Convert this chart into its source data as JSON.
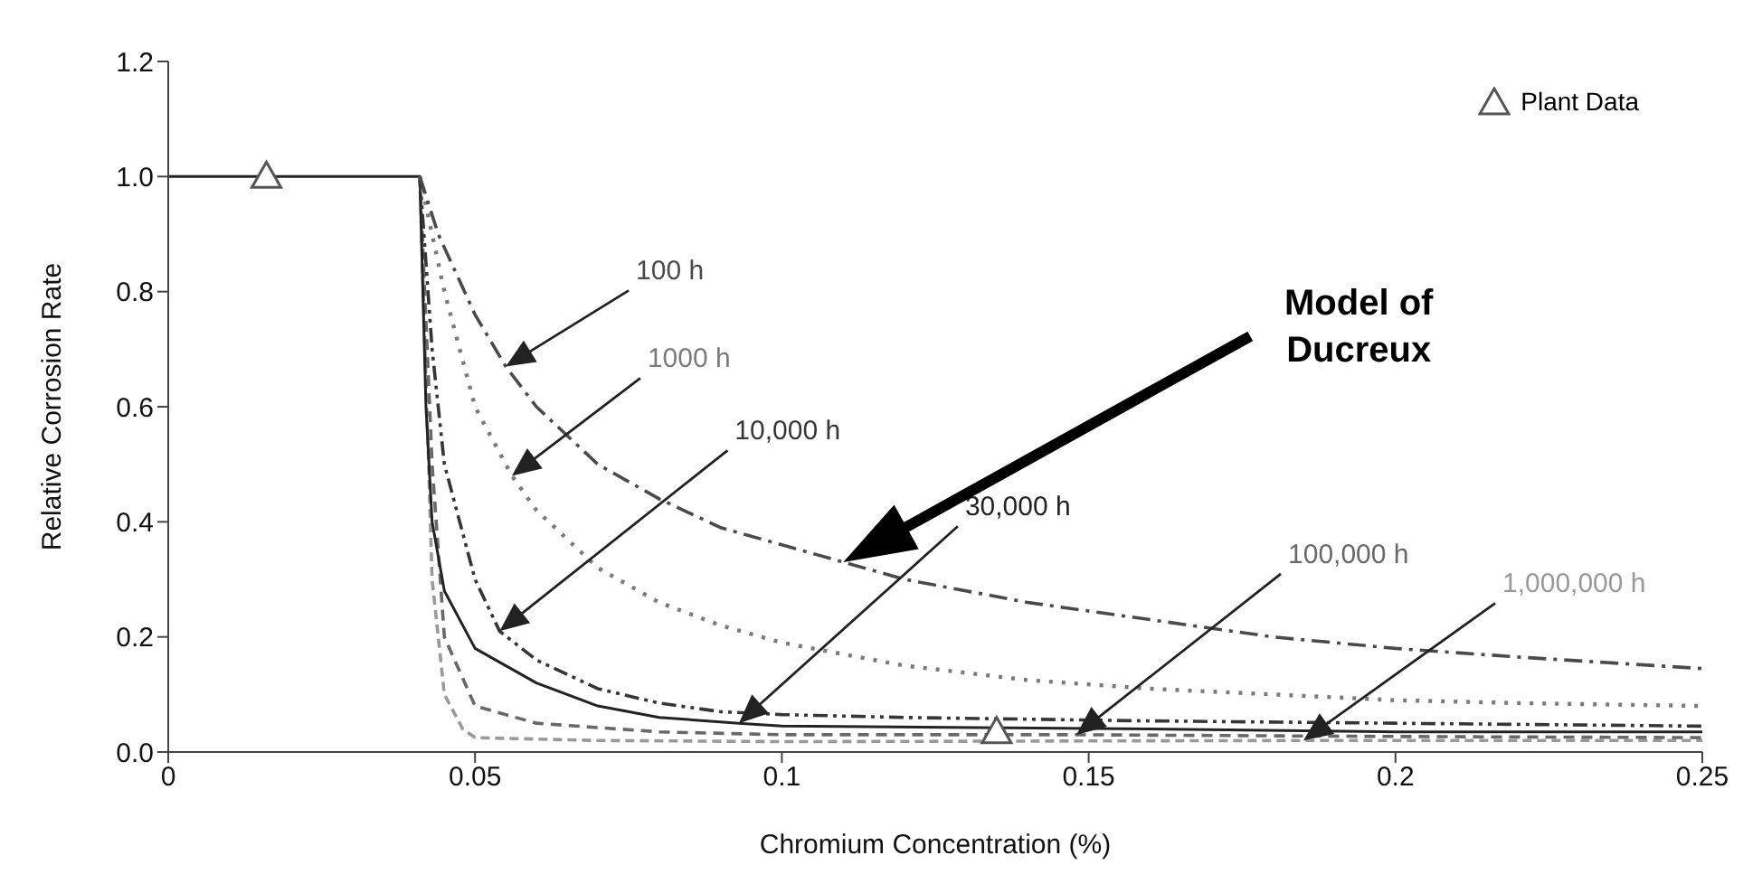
{
  "chart_data": {
    "type": "line",
    "xlabel": "Chromium Concentration (%)",
    "ylabel": "Relative Corrosion Rate",
    "xlim": [
      0,
      0.25
    ],
    "xticks": [
      0,
      0.05,
      0.1,
      0.15,
      0.2,
      0.25
    ],
    "ylim": [
      0,
      1.2
    ],
    "yticks": [
      {
        "value": 0,
        "label": "0.0"
      },
      {
        "value": 0.2,
        "label": "0.2"
      },
      {
        "value": 0.4,
        "label": "0.4"
      },
      {
        "value": 0.6,
        "label": "0.6"
      },
      {
        "value": 0.8,
        "label": "0.8"
      },
      {
        "value": 1,
        "label": "1.0"
      },
      {
        "value": 1.2,
        "label": "1.2"
      }
    ],
    "grid": false,
    "legend": "top right",
    "series": [
      {
        "name": "100 h",
        "color": "#4a4a4a",
        "line_style": "dashed",
        "x": [
          0.041,
          0.044,
          0.05,
          0.055,
          0.06,
          0.07,
          0.08,
          0.09,
          0.1,
          0.11,
          0.12,
          0.14,
          0.16,
          0.18,
          0.2,
          0.22,
          0.25
        ],
        "values": [
          1,
          0.9,
          0.76,
          0.67,
          0.6,
          0.5,
          0.44,
          0.39,
          0.36,
          0.33,
          0.3,
          0.26,
          0.23,
          0.2,
          0.18,
          0.165,
          0.145
        ]
      },
      {
        "name": "1000 h",
        "color": "#7a7a7a",
        "line_style": "dotted",
        "x": [
          0.041,
          0.045,
          0.05,
          0.056,
          0.06,
          0.07,
          0.08,
          0.09,
          0.1,
          0.12,
          0.14,
          0.16,
          0.18,
          0.2,
          0.22,
          0.25
        ],
        "values": [
          1,
          0.8,
          0.6,
          0.48,
          0.42,
          0.32,
          0.26,
          0.22,
          0.19,
          0.15,
          0.125,
          0.11,
          0.1,
          0.09,
          0.085,
          0.08
        ]
      },
      {
        "name": "10,000 h",
        "color": "#363636",
        "line_style": "dashed",
        "x": [
          0.041,
          0.043,
          0.045,
          0.05,
          0.054,
          0.06,
          0.07,
          0.08,
          0.09,
          0.1,
          0.12,
          0.16,
          0.2,
          0.25
        ],
        "values": [
          1,
          0.7,
          0.5,
          0.3,
          0.21,
          0.16,
          0.11,
          0.085,
          0.07,
          0.065,
          0.06,
          0.054,
          0.05,
          0.045
        ]
      },
      {
        "name": "30,000 h",
        "color": "#222222",
        "line_style": "solid",
        "x": [
          0,
          0.041,
          0.042,
          0.043,
          0.045,
          0.05,
          0.06,
          0.07,
          0.08,
          0.093,
          0.1,
          0.16,
          0.2,
          0.25
        ],
        "values": [
          1,
          1,
          0.6,
          0.4,
          0.28,
          0.18,
          0.12,
          0.08,
          0.06,
          0.05,
          0.045,
          0.04,
          0.035,
          0.035
        ]
      },
      {
        "name": "100,000 h",
        "color": "#686868",
        "line_style": "dashed",
        "x": [
          0.041,
          0.043,
          0.045,
          0.05,
          0.06,
          0.08,
          0.1,
          0.148,
          0.2,
          0.25
        ],
        "values": [
          1,
          0.5,
          0.2,
          0.08,
          0.05,
          0.035,
          0.03,
          0.03,
          0.027,
          0.025
        ]
      },
      {
        "name": "1,000,000 h",
        "color": "#999999",
        "line_style": "dashed",
        "x": [
          0.041,
          0.043,
          0.045,
          0.048,
          0.05,
          0.07,
          0.1,
          0.185,
          0.25
        ],
        "values": [
          1,
          0.3,
          0.1,
          0.04,
          0.025,
          0.02,
          0.018,
          0.02,
          0.02
        ]
      },
      {
        "name": "Plant Data",
        "type": "scatter",
        "marker": "triangle",
        "color": "#555555",
        "x": [
          0.016,
          0.135
        ],
        "values": [
          1,
          0.035
        ]
      }
    ],
    "annotations": [
      "Model of Ducreux"
    ]
  }
}
